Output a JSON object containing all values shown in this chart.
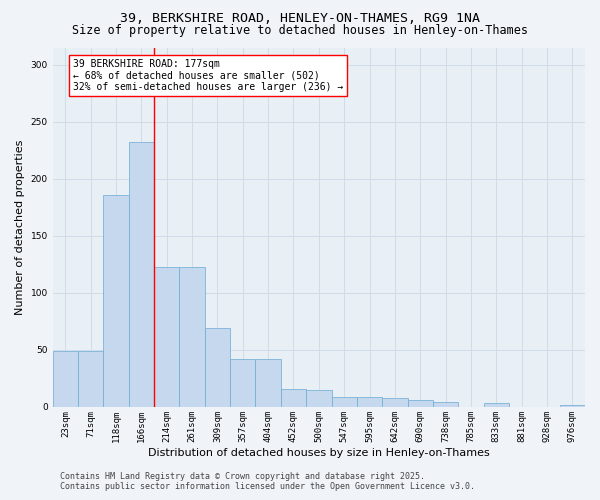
{
  "title": "39, BERKSHIRE ROAD, HENLEY-ON-THAMES, RG9 1NA",
  "subtitle": "Size of property relative to detached houses in Henley-on-Thames",
  "xlabel": "Distribution of detached houses by size in Henley-on-Thames",
  "ylabel": "Number of detached properties",
  "footer_line1": "Contains HM Land Registry data © Crown copyright and database right 2025.",
  "footer_line2": "Contains public sector information licensed under the Open Government Licence v3.0.",
  "categories": [
    "23sqm",
    "71sqm",
    "118sqm",
    "166sqm",
    "214sqm",
    "261sqm",
    "309sqm",
    "357sqm",
    "404sqm",
    "452sqm",
    "500sqm",
    "547sqm",
    "595sqm",
    "642sqm",
    "690sqm",
    "738sqm",
    "785sqm",
    "833sqm",
    "881sqm",
    "928sqm",
    "976sqm"
  ],
  "values": [
    49,
    49,
    186,
    232,
    123,
    123,
    69,
    42,
    42,
    16,
    15,
    9,
    9,
    8,
    6,
    4,
    0,
    3,
    0,
    0,
    2
  ],
  "bar_color": "#c5d8ee",
  "bar_edge_color": "#6aaad4",
  "grid_color": "#d0dce8",
  "bg_color": "#e8eff5",
  "plot_bg_color": "#e8eff5",
  "fig_bg_color": "#f0f4f8",
  "vline_x": 3.5,
  "vline_color": "red",
  "annotation_text": "39 BERKSHIRE ROAD: 177sqm\n← 68% of detached houses are smaller (502)\n32% of semi-detached houses are larger (236) →",
  "annotation_box_facecolor": "white",
  "annotation_box_edgecolor": "red",
  "title_fontsize": 9.5,
  "subtitle_fontsize": 8.5,
  "ylabel_fontsize": 8,
  "xlabel_fontsize": 8,
  "tick_fontsize": 6.5,
  "annotation_fontsize": 7,
  "footer_fontsize": 6,
  "ylim": [
    0,
    315
  ],
  "yticks": [
    0,
    50,
    100,
    150,
    200,
    250,
    300
  ]
}
